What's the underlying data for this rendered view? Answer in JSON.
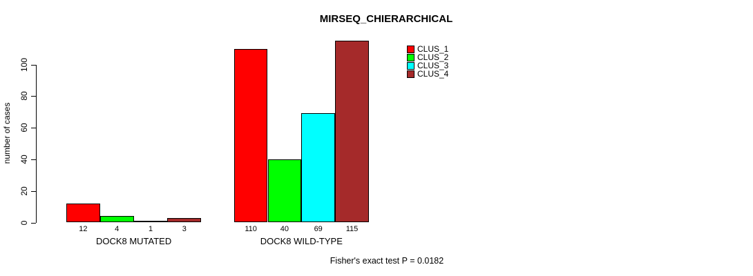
{
  "chart_data": {
    "type": "bar",
    "title": "MIRSEQ_CHIERARCHICAL",
    "ylabel": "number of cases",
    "xlabel": "",
    "yticks": [
      0,
      20,
      40,
      60,
      80,
      100
    ],
    "ylim": [
      0,
      115
    ],
    "grid": false,
    "legend_position": "top-right",
    "series": [
      {
        "name": "CLUS_1",
        "color": "#FF0000"
      },
      {
        "name": "CLUS_2",
        "color": "#00FF00"
      },
      {
        "name": "CLUS_3",
        "color": "#00FFFF"
      },
      {
        "name": "CLUS_4",
        "color": "#A52A2A"
      }
    ],
    "groups": [
      {
        "label": "DOCK8 MUTATED",
        "values": [
          12,
          4,
          1,
          3
        ]
      },
      {
        "label": "DOCK8 WILD-TYPE",
        "values": [
          110,
          40,
          69,
          115
        ]
      }
    ],
    "bar_value_labels": [
      [
        "12",
        "4",
        "1",
        "3"
      ],
      [
        "110",
        "40",
        "69",
        "115"
      ]
    ],
    "annotation": "Fisher's exact test P = 0.0182"
  },
  "colors": {
    "axis": "#000000",
    "background": "#ffffff",
    "text": "#000000"
  }
}
